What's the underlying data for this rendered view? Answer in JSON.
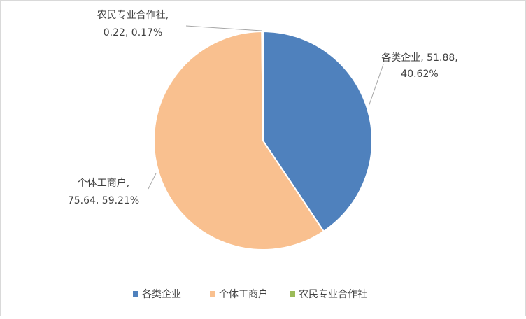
{
  "chart_data": {
    "type": "pie",
    "categories": [
      "各类企业",
      "个体工商户",
      "农民专业合作社"
    ],
    "values": [
      51.88,
      75.64,
      0.22
    ],
    "data_labels": [
      [
        "各类企业, 51.88,",
        "40.62%"
      ],
      [
        "个体工商户,",
        "75.64, 59.21%"
      ],
      [
        "农民专业合作社,",
        "0.22, 0.17%"
      ]
    ],
    "colors": [
      "#4f81bd",
      "#f9c08f",
      "#9bbb59"
    ],
    "legend": "bottom"
  }
}
